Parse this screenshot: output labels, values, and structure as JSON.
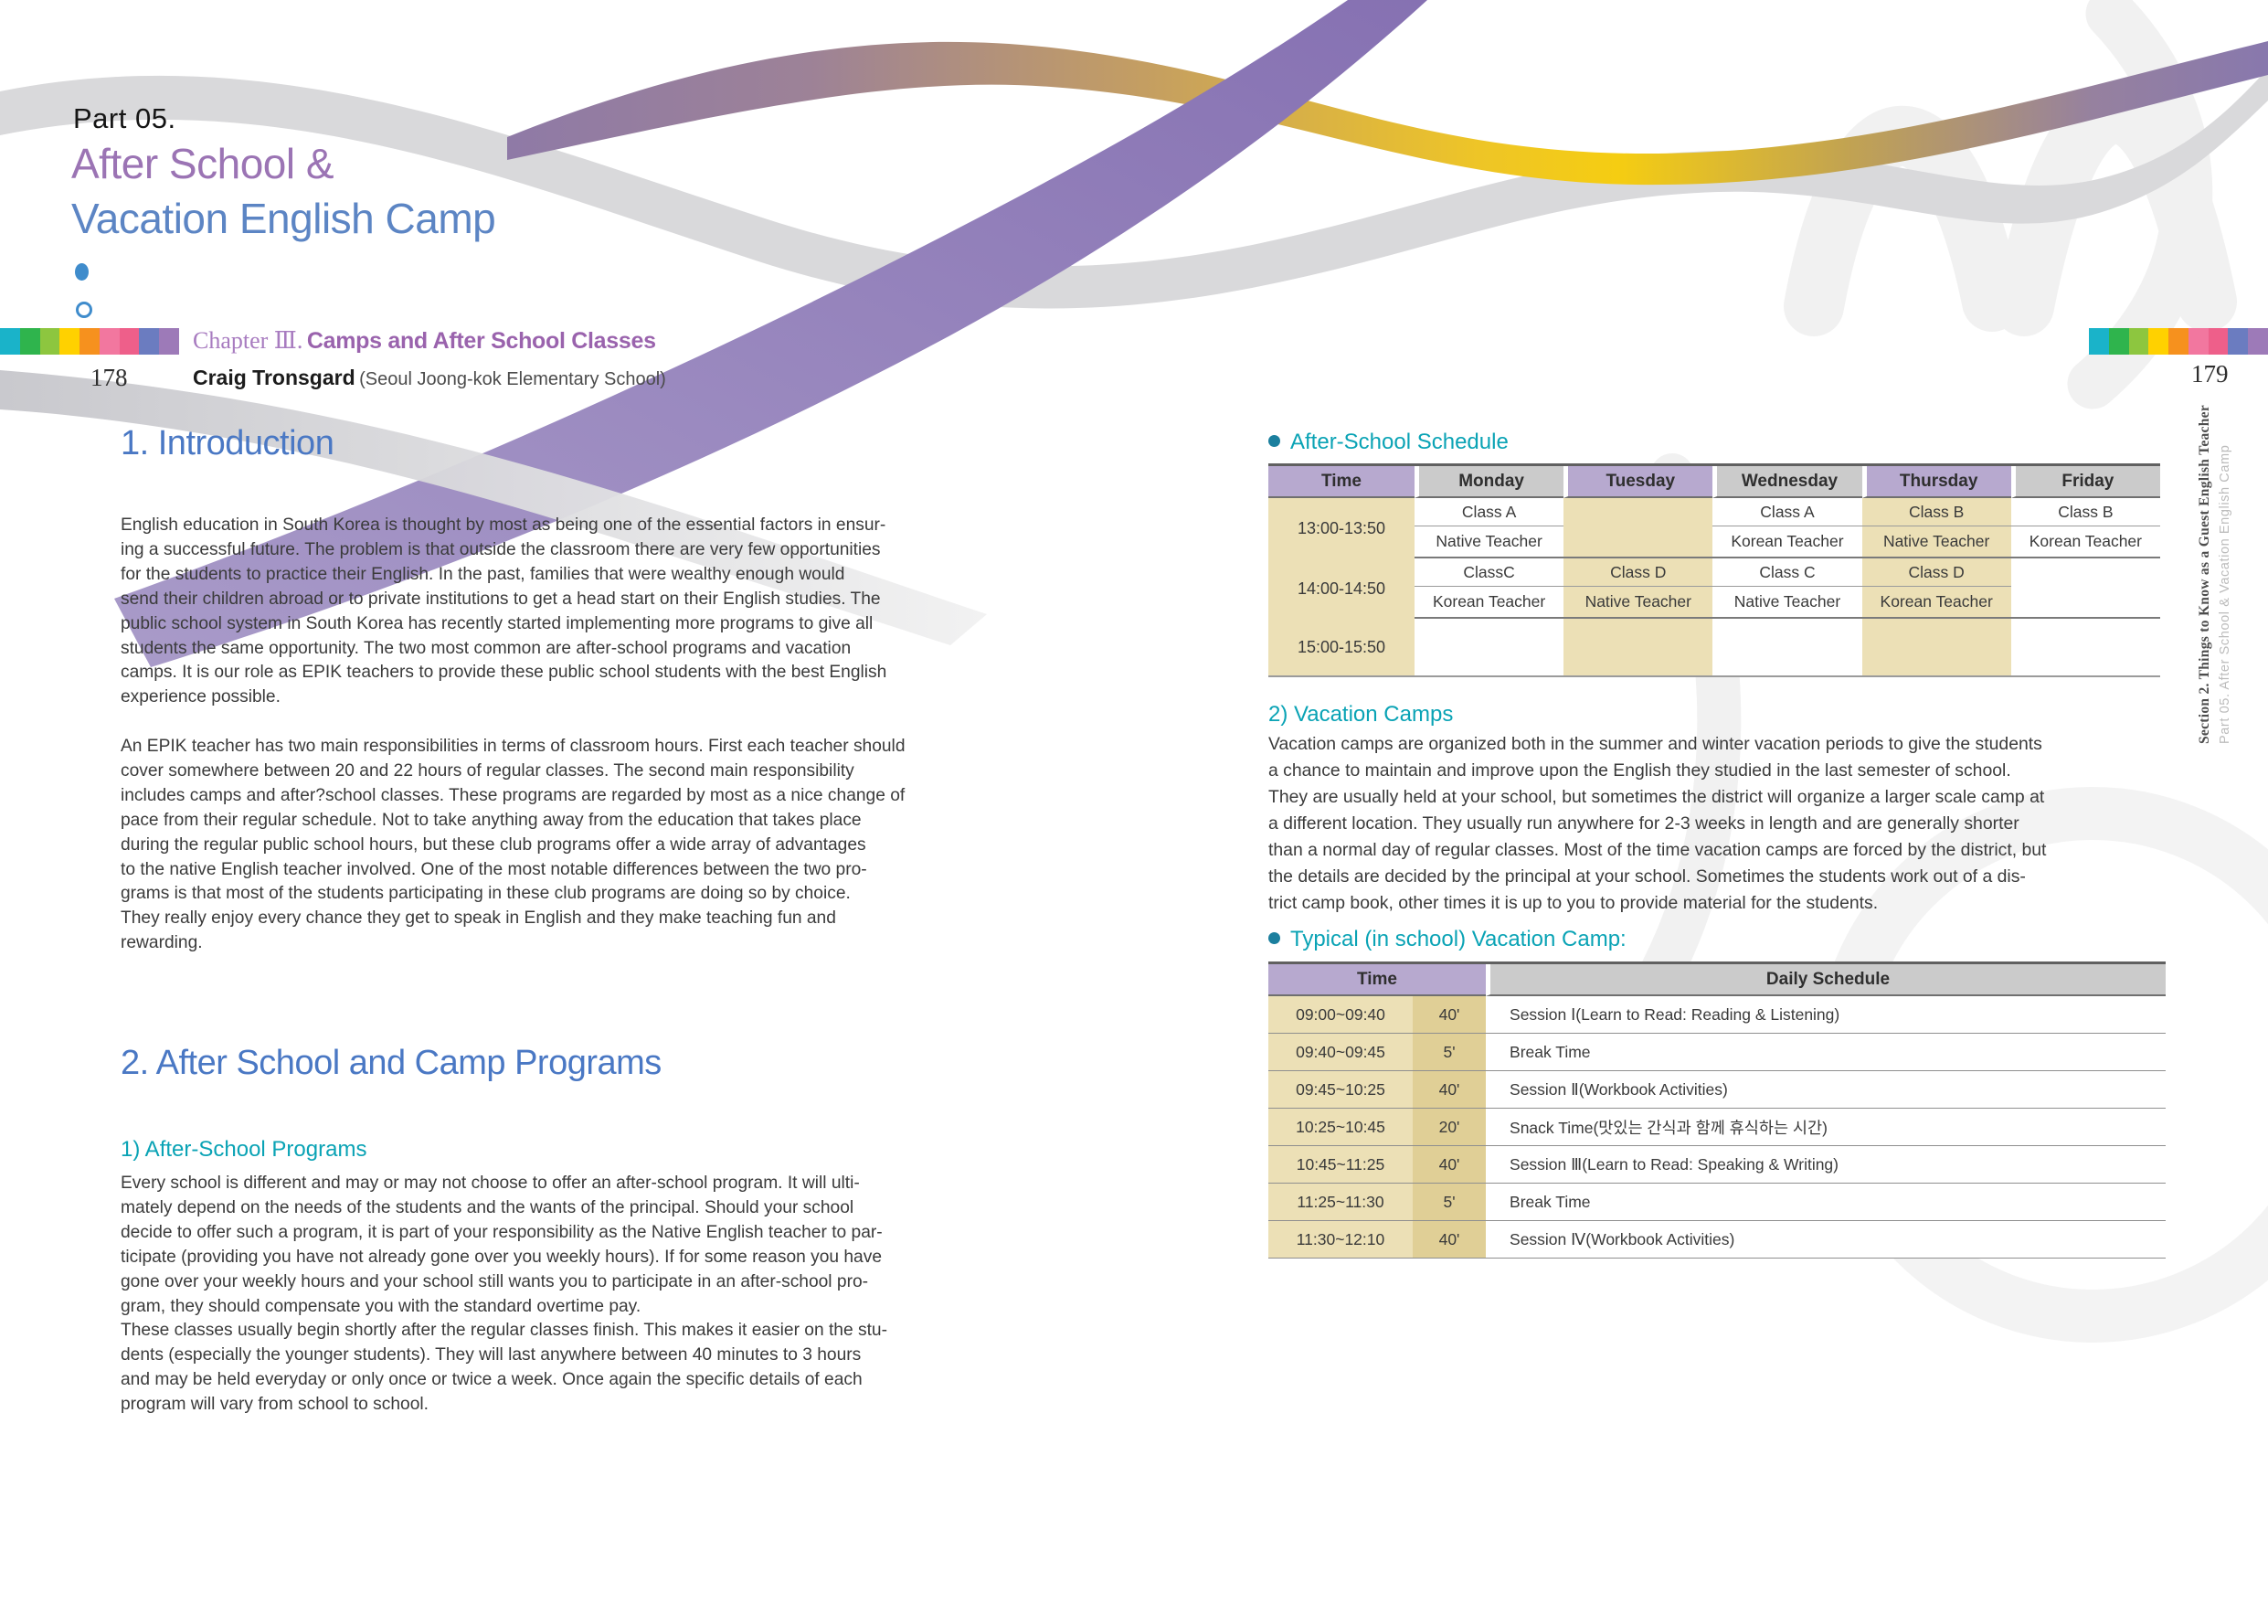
{
  "document": {
    "part_label": "Part 05.",
    "title_line1": "After School &",
    "title_line2": "Vacation English Camp",
    "chapter_prefix": "Chapter Ⅲ.",
    "chapter_title": "Camps and After School Classes",
    "author_name": "Craig Tronsgard",
    "author_affiliation": "(Seoul Joong-kok Elementary School)",
    "page_number_left": "178",
    "page_number_right": "179"
  },
  "left_page": {
    "intro": {
      "heading": "1. Introduction",
      "paragraph1": "English education in South Korea is thought by most as being one of the essential factors in ensur-\ning a successful future. The problem is that outside the classroom there are very few opportunities\nfor the students to practice their English. In the past, families that were wealthy enough would\nsend their children abroad or to private institutions to get a head start on their English studies. The\npublic school system in South Korea has recently started implementing more programs to give all\nstudents the same opportunity. The two most common are after-school programs and vacation\ncamps. It is our role as EPIK teachers to provide these public school students with the best English\nexperience possible.",
      "paragraph2": "An EPIK teacher has two main responsibilities in terms of classroom hours. First each teacher should\ncover somewhere between 20 and 22 hours of regular classes. The second main responsibility\nincludes camps and after?school classes. These programs are regarded by most as a nice change of\npace from their regular schedule. Not to take anything away from the education that takes place\nduring the regular public school hours, but these club programs offer a wide array of advantages\nto the native English teacher involved. One of the most notable differences between the two pro-\ngrams is that most of the students participating in these club programs are doing so by choice.\nThey really enjoy every chance they get to speak in English and they make teaching fun and\nrewarding."
    },
    "programs": {
      "heading": "2. After School and Camp Programs",
      "subheading": "1) After-School Programs",
      "body": "Every school is different and may or may not choose to offer an after-school program. It will ulti-\nmately depend on the needs of the students and the wants of the principal. Should your school\ndecide to offer such a program, it is part of your responsibility as the Native English teacher to par-\nticipate (providing you have not already gone over you weekly hours). If for some reason you have\ngone over your weekly hours and your school still wants you to participate in an after-school pro-\ngram, they should compensate you with the standard overtime pay.\nThese classes usually begin shortly after the regular classes finish. This makes it easier on the stu-\ndents (especially the younger students). They will last anywhere between 40 minutes to 3 hours\nand may be held everyday or only once or twice a week. Once again the specific details of each\nprogram will vary from school to school."
    }
  },
  "right_page": {
    "afterschool_schedule": {
      "heading": "After-School Schedule",
      "columns": [
        "Time",
        "Monday",
        "Tuesday",
        "Wednesday",
        "Thursday",
        "Friday"
      ],
      "rows": [
        {
          "time": "13:00-13:50",
          "classes": [
            "Class A",
            "",
            "Class A",
            "Class B",
            "Class B"
          ],
          "teachers": [
            "Native Teacher",
            "",
            "Korean Teacher",
            "Native Teacher",
            "Korean Teacher"
          ]
        },
        {
          "time": "14:00-14:50",
          "classes": [
            "ClassC",
            "Class D",
            "Class C",
            "Class D",
            ""
          ],
          "teachers": [
            "Korean Teacher",
            "Native Teacher",
            "Native Teacher",
            "Korean Teacher",
            ""
          ]
        },
        {
          "time": "15:00-15:50",
          "classes": [
            "",
            "",
            "",
            "",
            ""
          ],
          "teachers": [
            "",
            "",
            "",
            "",
            ""
          ]
        }
      ]
    },
    "vacation_camps": {
      "heading": "2) Vacation Camps",
      "body": "Vacation camps are organized both in the summer and winter vacation periods to give the students\na chance to maintain and improve upon the English they studied in the last semester of school.\nThey are usually held at your school, but sometimes the district will organize a larger scale camp at\na different location. They usually run anywhere for 2-3 weeks in length and are generally shorter\nthan a normal day of regular classes. Most of the time vacation camps are forced by the district, but\nthe details are decided by the principal at your school. Sometimes the students work out of a dis-\ntrict camp book, other times it is up to you to provide material for the students."
    },
    "vacation_camp_table": {
      "heading": "Typical (in school) Vacation Camp:",
      "col_time": "Time",
      "col_schedule": "Daily Schedule",
      "rows": [
        {
          "time": "09:00~09:40",
          "duration": "40'",
          "activity": "Session Ⅰ(Learn to Read: Reading & Listening)"
        },
        {
          "time": "09:40~09:45",
          "duration": "5'",
          "activity": "Break Time"
        },
        {
          "time": "09:45~10:25",
          "duration": "40'",
          "activity": "Session Ⅱ(Workbook Activities)"
        },
        {
          "time": "10:25~10:45",
          "duration": "20'",
          "activity": "Snack Time(맛있는 간식과 함께 휴식하는 시간)"
        },
        {
          "time": "10:45~11:25",
          "duration": "40'",
          "activity": "Session Ⅲ(Learn to Read: Speaking & Writing)"
        },
        {
          "time": "11:25~11:30",
          "duration": "5'",
          "activity": "Break Time"
        },
        {
          "time": "11:30~12:10",
          "duration": "40'",
          "activity": "Session Ⅳ(Workbook Activities)"
        }
      ]
    }
  },
  "sidebar": {
    "section_label": "Section 2. Things to Know as a Guest English Teacher",
    "part_label": "Part 05. After School & Vacation English Camp"
  },
  "colors": {
    "heading_blue": "#4a78c4",
    "heading_teal": "#0aa3b5",
    "bullet_teal": "#1b7f9e",
    "title_purple": "#9b74b4",
    "title_blue": "#5c85c4",
    "chapter_purple": "#9a63ad",
    "table_header_purple": "#b7a9cf",
    "table_header_gray": "#cbcbcb",
    "table_cell_tan": "#ece0b6",
    "table_cell_tan_dark": "#e0cf96",
    "left_strip": [
      "#1ab3c9",
      "#2fb44d",
      "#8dc63f",
      "#ffd100",
      "#f6911e",
      "#f2779f",
      "#ee5f8a",
      "#6b7cc0",
      "#9d7ab8"
    ],
    "right_strip": [
      "#1ab3c9",
      "#2fb44d",
      "#8dc63f",
      "#ffd100",
      "#f6911e",
      "#f2779f",
      "#ee5f8a",
      "#6b7cc0",
      "#9d7ab8"
    ]
  }
}
